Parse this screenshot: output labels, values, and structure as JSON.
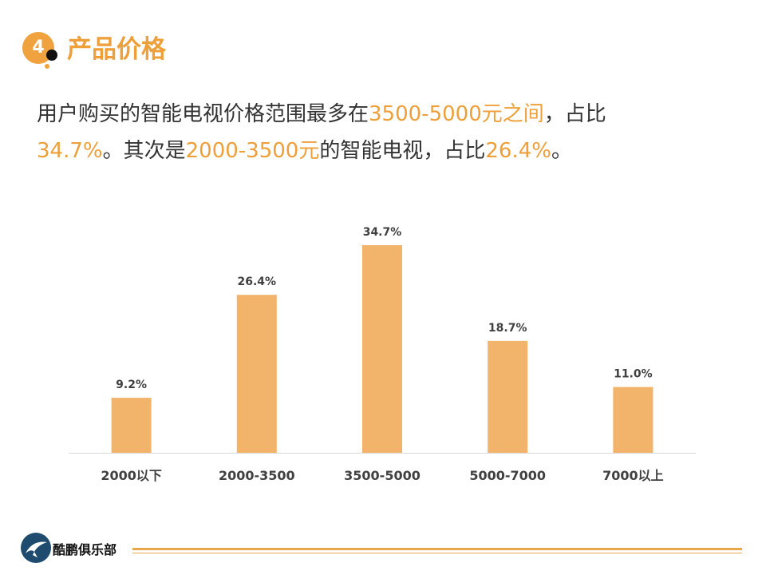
{
  "header": {
    "number": "4",
    "title": "产品价格"
  },
  "summary": {
    "p1": "用户购买的智能电视价格范围最多在",
    "h1": "3500-5000元之间",
    "p2": "，占比",
    "h2": "34.7%",
    "p3": "。其次是",
    "h3": "2000-3500元",
    "p4": "的智能电视，占比",
    "h4": "26.4%",
    "p5": "。"
  },
  "chart_data": {
    "type": "bar",
    "title": "",
    "xlabel": "",
    "ylabel": "",
    "categories": [
      "2000以下",
      "2000-3500",
      "3500-5000",
      "5000-7000",
      "7000以上"
    ],
    "values": [
      9.2,
      26.4,
      34.7,
      18.7,
      11.0
    ],
    "value_labels": [
      "9.2%",
      "26.4%",
      "34.7%",
      "18.7%",
      "11.0%"
    ],
    "unit": "%",
    "ylim": [
      0,
      40
    ],
    "grid": false,
    "bar_color": "#F2B46B"
  },
  "footer": {
    "brand": "酷鹏俱乐部"
  },
  "colors": {
    "accent": "#EE9F3A",
    "text": "#333333"
  }
}
